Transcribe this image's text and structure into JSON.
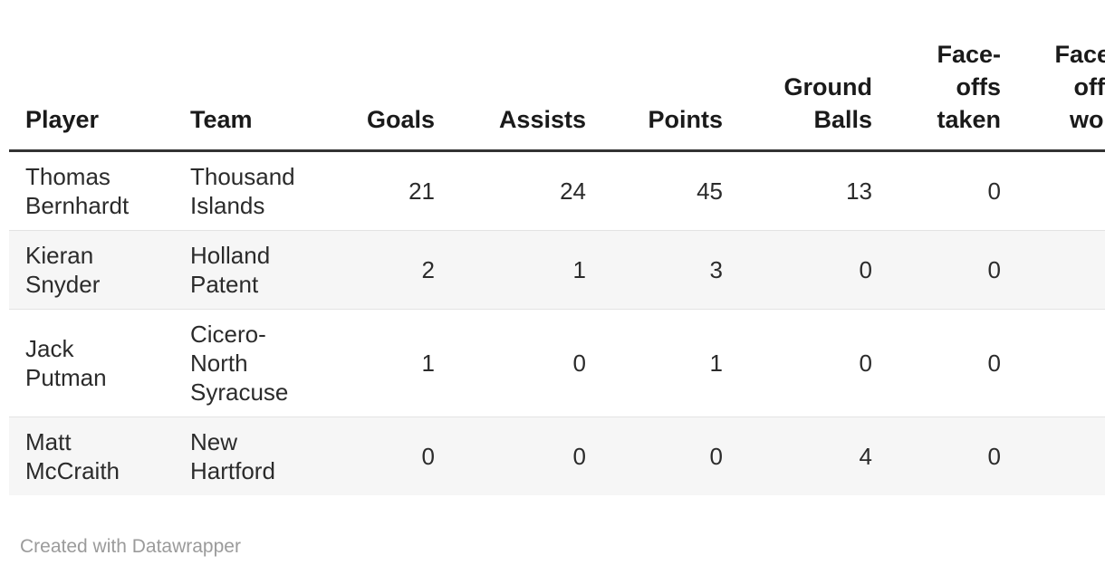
{
  "table": {
    "columns": [
      {
        "label": "Player",
        "align": "left"
      },
      {
        "label": "Team",
        "align": "left"
      },
      {
        "label": "Goals",
        "align": "right"
      },
      {
        "label": "Assists",
        "align": "right"
      },
      {
        "label": "Points",
        "align": "right"
      },
      {
        "label": "Ground Balls",
        "align": "right"
      },
      {
        "label": "Face-offs taken",
        "align": "right"
      },
      {
        "label": "Face-offs won",
        "align": "right",
        "note": "partially cut off at right edge of viewport"
      }
    ],
    "rows": [
      {
        "cells": [
          "Thomas Bernhardt",
          "Thousand Islands",
          "21",
          "24",
          "45",
          "13",
          "0",
          ""
        ]
      },
      {
        "cells": [
          "Kieran Snyder",
          "Holland Patent",
          "2",
          "1",
          "3",
          "0",
          "0",
          ""
        ]
      },
      {
        "cells": [
          "Jack Putman",
          "Cicero-North Syracuse",
          "1",
          "0",
          "1",
          "0",
          "0",
          ""
        ]
      },
      {
        "cells": [
          "Matt McCraith",
          "New Hartford",
          "0",
          "0",
          "0",
          "4",
          "0",
          ""
        ]
      }
    ]
  },
  "footer": {
    "attribution": "Created with Datawrapper"
  },
  "colors": {
    "header_text": "#1a1a1a",
    "body_text": "#2b2b2b",
    "header_rule": "#333333",
    "row_divider": "#e3e3e3",
    "row_stripe": "#f6f6f6",
    "footer_text": "#9b9b9b",
    "background": "#ffffff"
  }
}
